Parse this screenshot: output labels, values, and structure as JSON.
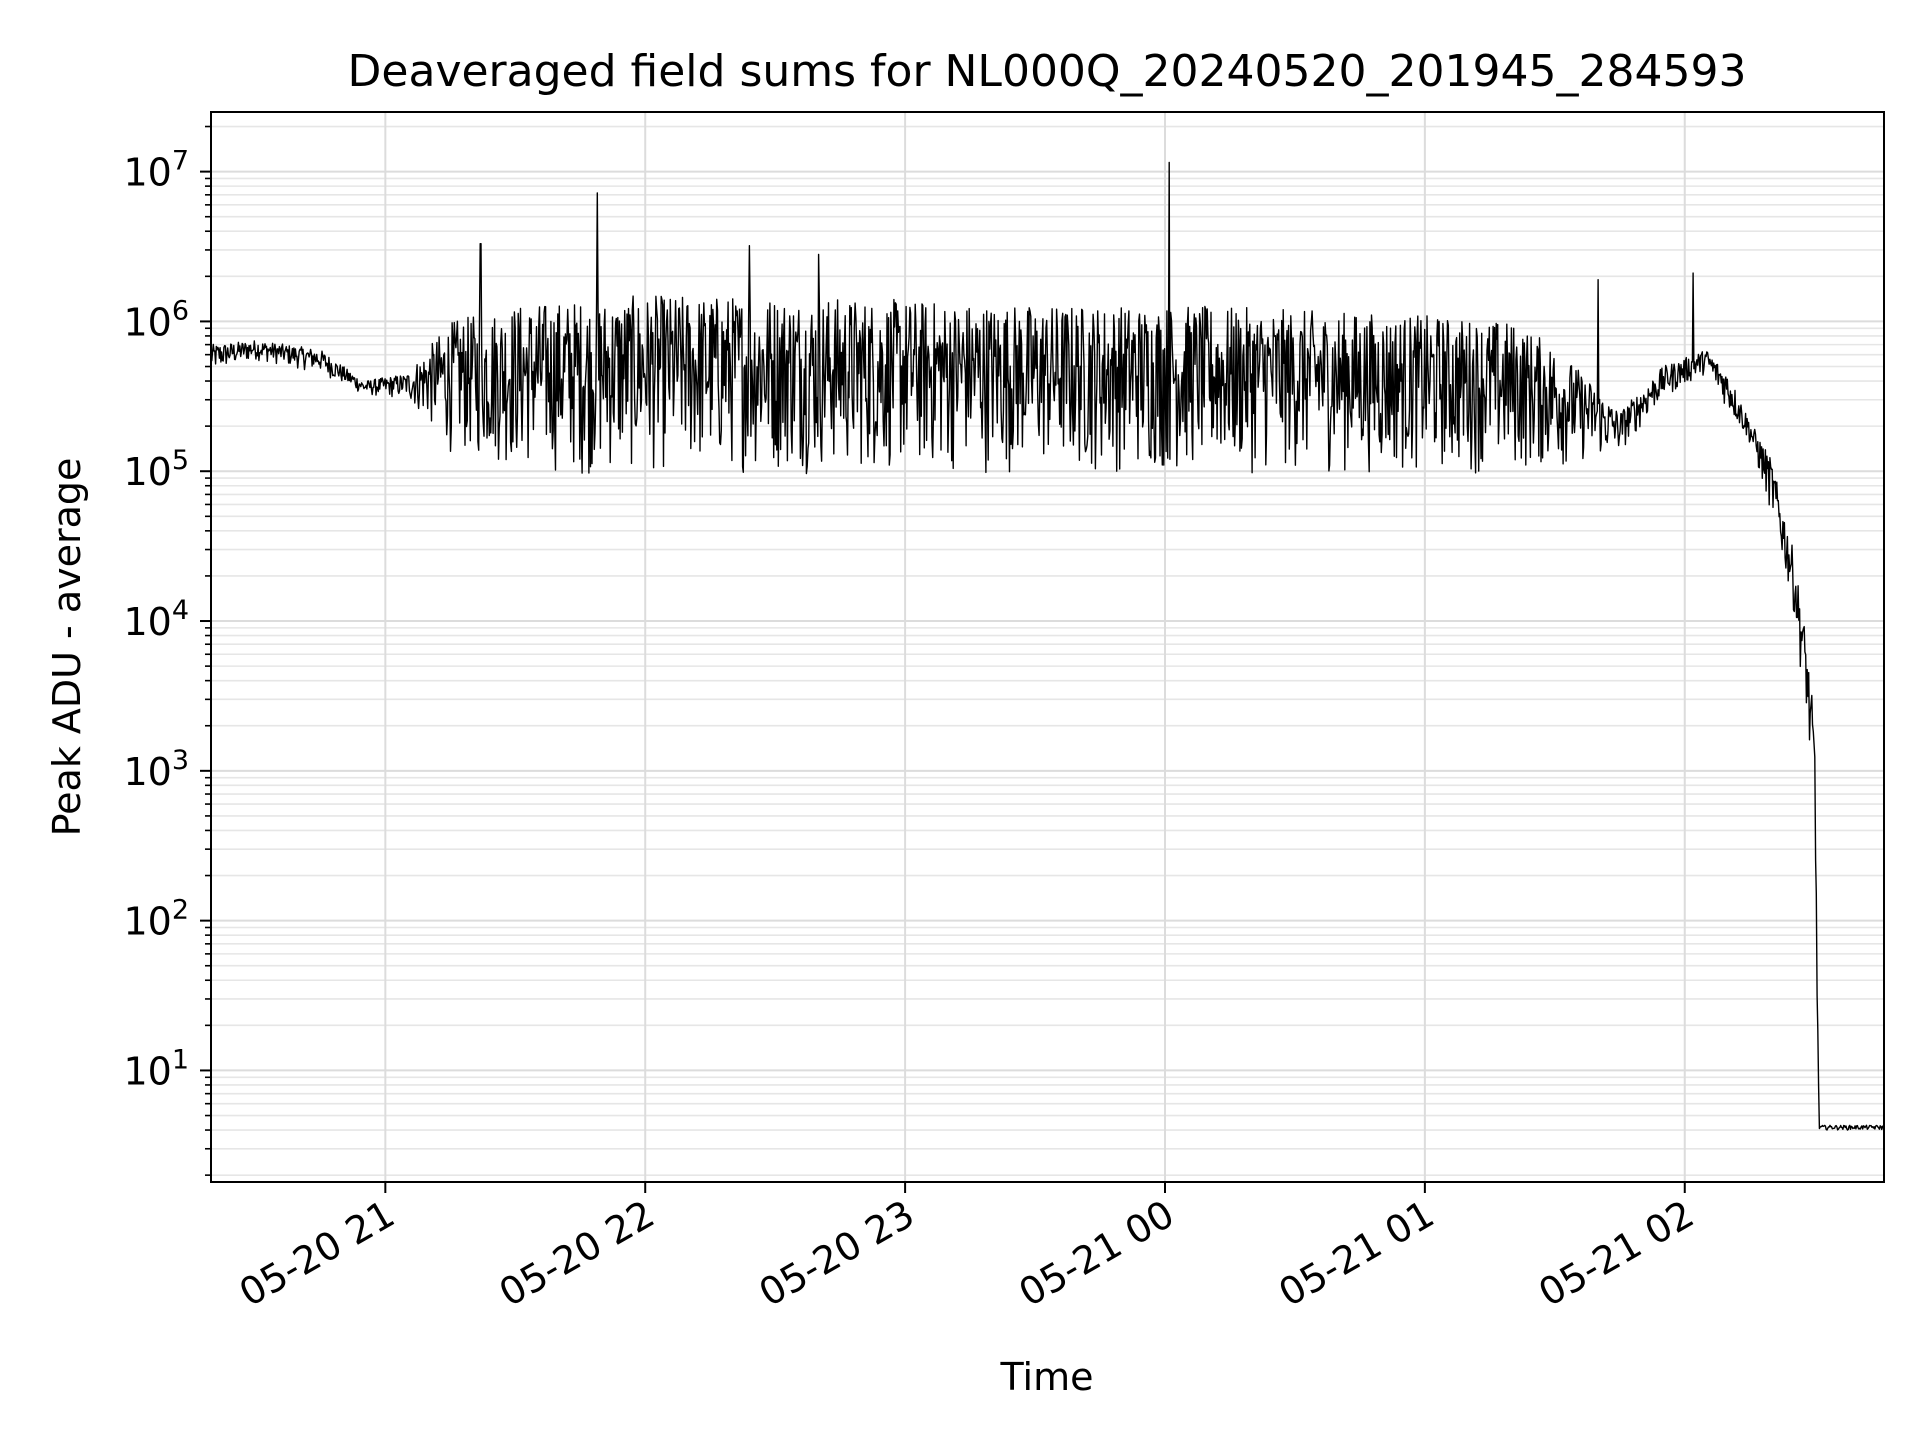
{
  "chart_data": {
    "type": "line",
    "title": "Deaveraged field sums for NL000Q_20240520_201945_284593",
    "xlabel": "Time",
    "ylabel": "Peak ADU - average",
    "x_range": [
      "2024-05-20 20:19:45",
      "2024-05-21 02:46:00"
    ],
    "y_scale": "log",
    "ylim": [
      1.8,
      25000000
    ],
    "grid": true,
    "minor_grid": true,
    "x_ticks": [
      {
        "value": "2024-05-20 21:00",
        "label": "05-20 21"
      },
      {
        "value": "2024-05-20 22:00",
        "label": "05-20 22"
      },
      {
        "value": "2024-05-20 23:00",
        "label": "05-20 23"
      },
      {
        "value": "2024-05-21 00:00",
        "label": "05-21 00"
      },
      {
        "value": "2024-05-21 01:00",
        "label": "05-21 01"
      },
      {
        "value": "2024-05-21 02:00",
        "label": "05-21 02"
      }
    ],
    "y_ticks": [
      {
        "value": 10,
        "base": "10",
        "exp": "1"
      },
      {
        "value": 100,
        "base": "10",
        "exp": "2"
      },
      {
        "value": 1000,
        "base": "10",
        "exp": "3"
      },
      {
        "value": 10000,
        "base": "10",
        "exp": "4"
      },
      {
        "value": 100000,
        "base": "10",
        "exp": "5"
      },
      {
        "value": 1000000,
        "base": "10",
        "exp": "6"
      },
      {
        "value": 10000000,
        "base": "10",
        "exp": "7"
      }
    ],
    "line_color": "#000000",
    "envelope": {
      "x": [
        "2024-05-20 20:19:45",
        "2024-05-20 20:30",
        "2024-05-20 20:45",
        "2024-05-20 20:55",
        "2024-05-20 21:05",
        "2024-05-20 21:15",
        "2024-05-20 21:30",
        "2024-05-20 21:45",
        "2024-05-20 22:00",
        "2024-05-20 22:30",
        "2024-05-20 23:00",
        "2024-05-20 23:30",
        "2024-05-21 00:00",
        "2024-05-21 00:30",
        "2024-05-21 01:00",
        "2024-05-21 01:20",
        "2024-05-21 01:30",
        "2024-05-21 01:45",
        "2024-05-21 01:55",
        "2024-05-21 02:05",
        "2024-05-21 02:10",
        "2024-05-21 02:15",
        "2024-05-21 02:20",
        "2024-05-21 02:25",
        "2024-05-21 02:28",
        "2024-05-21 02:30",
        "2024-05-21 02:31",
        "2024-05-21 02:46"
      ],
      "low": [
        450000,
        550000,
        450000,
        320000,
        300000,
        130000,
        100000,
        90000,
        95000,
        95000,
        95000,
        95000,
        95000,
        95000,
        95000,
        95000,
        100000,
        130000,
        300000,
        450000,
        250000,
        150000,
        50000,
        12000,
        2500,
        300,
        4,
        4
      ],
      "high": [
        700000,
        750000,
        650000,
        400000,
        450000,
        1000000,
        1300000,
        1400000,
        1500000,
        1500000,
        1400000,
        1300000,
        1300000,
        1200000,
        1100000,
        1000000,
        700000,
        250000,
        500000,
        650000,
        450000,
        220000,
        120000,
        30000,
        8000,
        2000,
        4.3,
        4.3
      ]
    },
    "spikes": [
      {
        "x": "2024-05-20 21:22",
        "y": 3300000
      },
      {
        "x": "2024-05-20 21:49",
        "y": 7200000
      },
      {
        "x": "2024-05-20 22:24",
        "y": 3200000
      },
      {
        "x": "2024-05-20 22:40",
        "y": 2800000
      },
      {
        "x": "2024-05-21 00:01",
        "y": 11500000
      },
      {
        "x": "2024-05-21 01:40",
        "y": 1900000
      },
      {
        "x": "2024-05-21 02:02",
        "y": 2100000
      }
    ]
  }
}
